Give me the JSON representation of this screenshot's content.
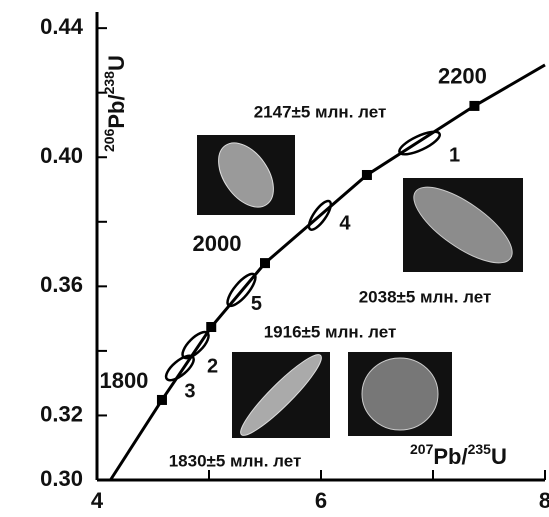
{
  "chart_data": {
    "type": "concordia",
    "ylabel": {
      "parts": [
        "206",
        "Pb/",
        "238",
        "U"
      ]
    },
    "xlabel": {
      "parts": [
        "207",
        "Pb/",
        "235",
        "U"
      ]
    },
    "xlim": [
      4,
      8
    ],
    "ylim": [
      0.3,
      0.445
    ],
    "xticks": [
      4,
      6,
      8
    ],
    "minor_xticks": [
      5,
      7
    ],
    "yticks": [
      {
        "value": 0.3,
        "label": "0.30"
      },
      0.32,
      0.36,
      {
        "value": 0.4,
        "label": "0.40"
      },
      0.44
    ],
    "minor_yticks": [
      0.34,
      0.38,
      0.42
    ],
    "curve": {
      "color": "#000000",
      "x": [
        4.12,
        4.58,
        5.02,
        5.5,
        6.41,
        7.37,
        8
      ],
      "y": [
        0.3,
        0.3248,
        0.3474,
        0.3672,
        0.3945,
        0.4159,
        0.4286
      ]
    },
    "age_marks": {
      "labels": [
        1800,
        null,
        2000,
        null,
        2200
      ],
      "x": [
        4.58,
        5.02,
        5.5,
        6.41,
        7.37
      ],
      "y": [
        0.3248,
        0.3474,
        0.3672,
        0.3945,
        0.4159
      ]
    },
    "analyses": {
      "labels": [
        "1",
        "4",
        "5",
        "2",
        "3"
      ],
      "x": [
        6.88,
        5.99,
        5.29,
        4.88,
        4.74
      ],
      "y": [
        0.4044,
        0.382,
        0.3589,
        0.3418,
        0.3347
      ]
    },
    "annotations": [
      "2147±5 млн. лет",
      "2038±5 млн. лет",
      "1916±5 млн. лет",
      "1830±5 млн. лет"
    ]
  }
}
